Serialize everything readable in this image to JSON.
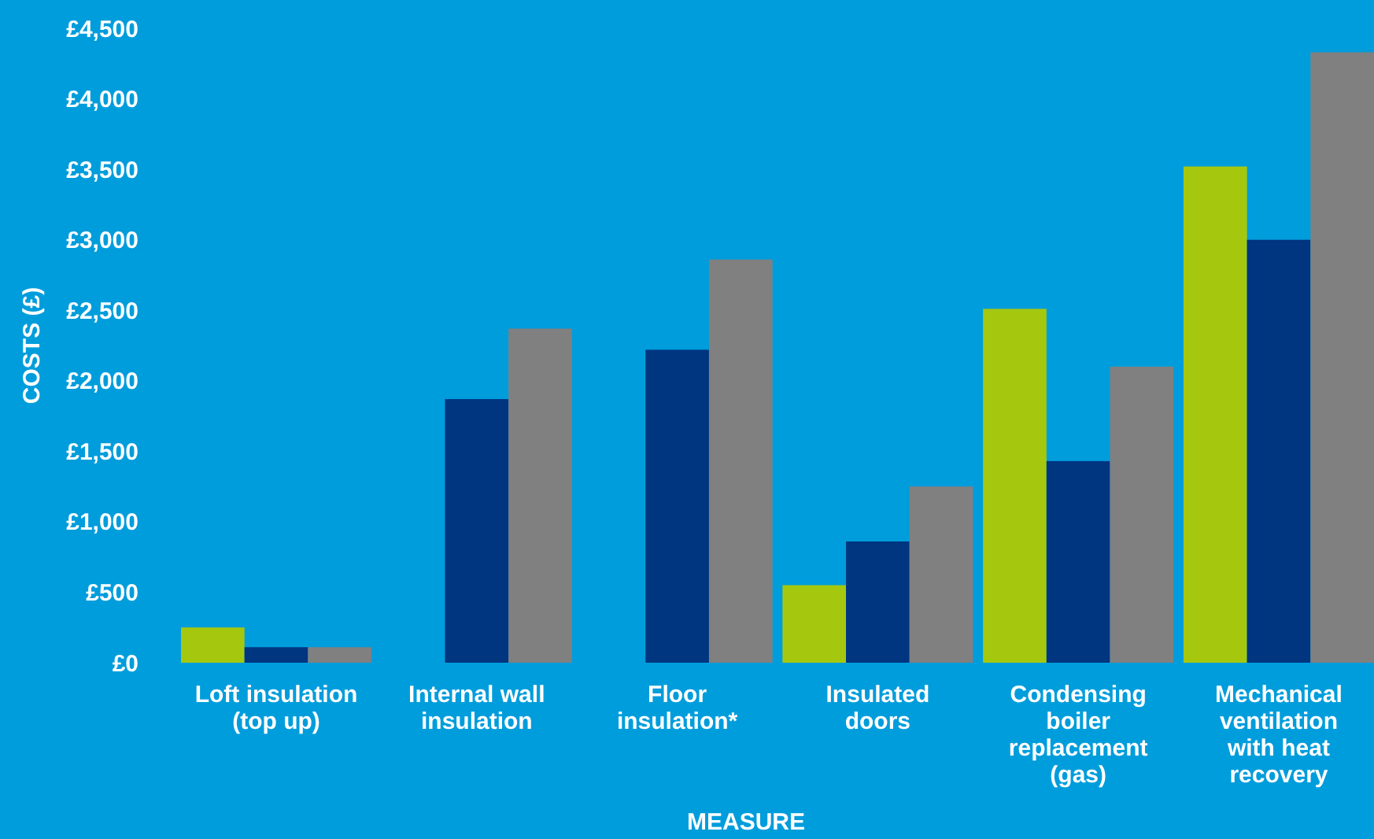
{
  "chart_data": {
    "type": "bar",
    "xlabel": "MEASURE",
    "ylabel": "COSTS (£)",
    "categories": [
      "Loft insulation (top up)",
      "Internal wall insulation",
      "Floor insulation*",
      "Insulated doors",
      "Condensing boiler replacement (gas)",
      "Mechanical ventilation with heat recovery"
    ],
    "series": [
      {
        "color": "#a5c80f",
        "values": [
          250,
          null,
          null,
          550,
          2510,
          3520
        ]
      },
      {
        "color": "#003580",
        "values": [
          110,
          1870,
          2220,
          860,
          1430,
          3000
        ]
      },
      {
        "color": "#808080",
        "values": [
          110,
          2370,
          2860,
          1250,
          2100,
          4330
        ]
      }
    ],
    "ylim": [
      0,
      4500
    ],
    "yticks": [
      {
        "value": 0,
        "label": "£0"
      },
      {
        "value": 500,
        "label": "£500"
      },
      {
        "value": 1000,
        "label": "£1,000"
      },
      {
        "value": 1500,
        "label": "£1,500"
      },
      {
        "value": 2000,
        "label": "£2,000"
      },
      {
        "value": 2500,
        "label": "£2,500"
      },
      {
        "value": 3000,
        "label": "£3,000"
      },
      {
        "value": 3500,
        "label": "£3,500"
      },
      {
        "value": 4000,
        "label": "£4,000"
      },
      {
        "value": 4500,
        "label": "£4,500"
      }
    ],
    "grid": false
  }
}
